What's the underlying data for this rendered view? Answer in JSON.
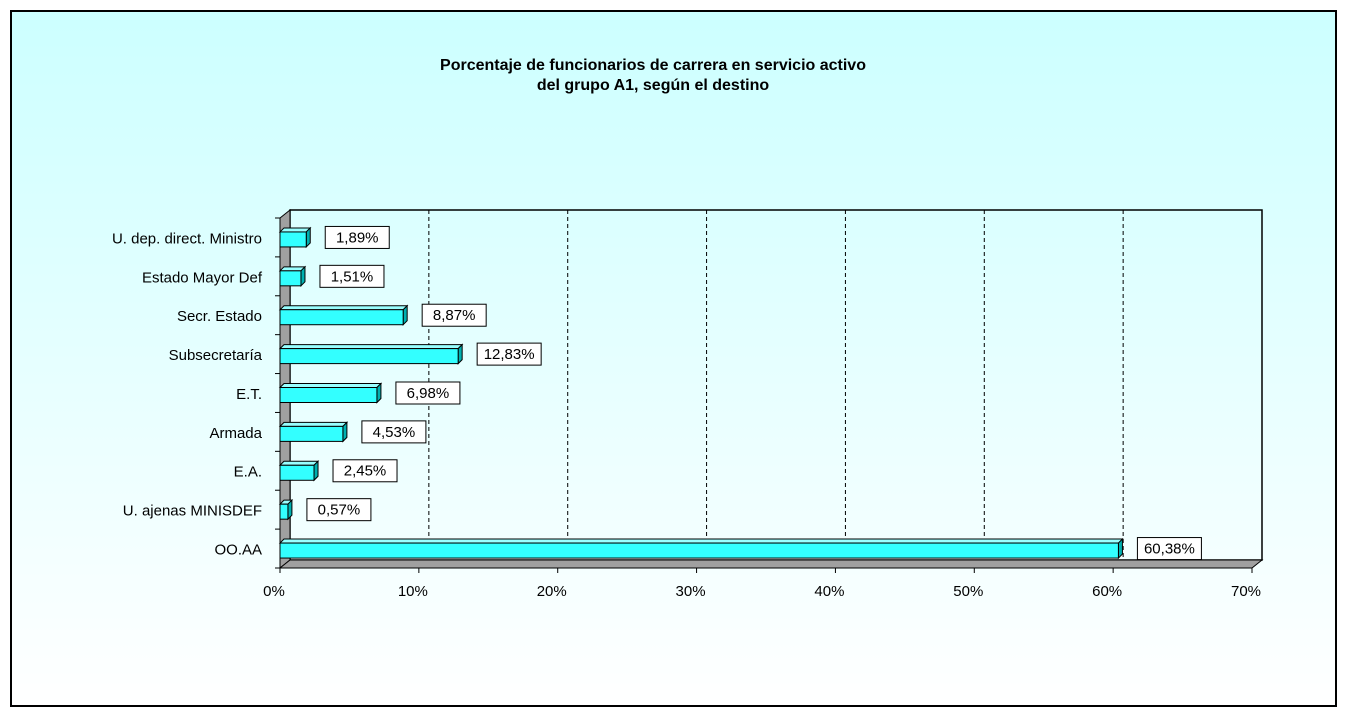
{
  "chart_data": {
    "type": "bar",
    "orientation": "horizontal",
    "title": [
      "Porcentaje de funcionarios de carrera en servicio activo",
      "del grupo A1, según el destino"
    ],
    "categories": [
      "U. dep. direct. Ministro",
      "Estado Mayor Def",
      "Secr. Estado",
      "Subsecretaría",
      "E.T.",
      "Armada",
      "E.A.",
      "U. ajenas MINISDEF",
      "OO.AA"
    ],
    "values": [
      1.89,
      1.51,
      8.87,
      12.83,
      6.98,
      4.53,
      2.45,
      0.57,
      60.38
    ],
    "value_labels": [
      "1,89%",
      "1,51%",
      "8,87%",
      "12,83%",
      "6,98%",
      "4,53%",
      "2,45%",
      "0,57%",
      "60,38%"
    ],
    "color": "#33ffff",
    "xlim": [
      0,
      70
    ],
    "xticks": [
      {
        "value": 0,
        "label": "0%"
      },
      {
        "value": 10,
        "label": "10%"
      },
      {
        "value": 20,
        "label": "20%"
      },
      {
        "value": 30,
        "label": "30%"
      },
      {
        "value": 40,
        "label": "40%"
      },
      {
        "value": 50,
        "label": "50%"
      },
      {
        "value": 60,
        "label": "60%"
      },
      {
        "value": 70,
        "label": "70%"
      }
    ],
    "grid": true
  }
}
